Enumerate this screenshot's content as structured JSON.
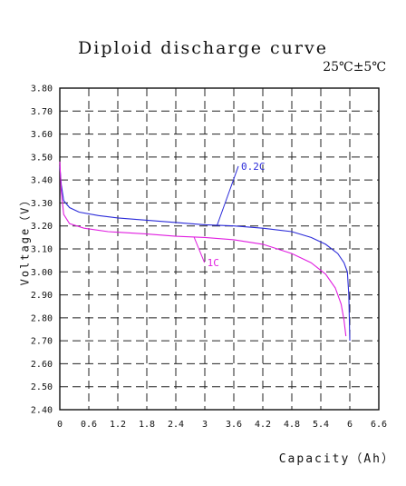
{
  "chart_data": {
    "type": "line",
    "title": "Diploid discharge curve",
    "subtitle": "25℃±5℃",
    "xlabel": "Capacity（Ah）",
    "ylabel": "Voltage（V）",
    "xlim": [
      0,
      6.6
    ],
    "ylim": [
      2.4,
      3.8
    ],
    "x_ticks": [
      "0",
      "0.6",
      "1.2",
      "1.8",
      "2.4",
      "3",
      "3.6",
      "4.2",
      "4.8",
      "5.4",
      "6",
      "6.6"
    ],
    "y_ticks": [
      "3.80",
      "3.70",
      "3.60",
      "3.50",
      "3.40",
      "3.30",
      "3.20",
      "3.10",
      "3.00",
      "2.90",
      "2.80",
      "2.70",
      "2.60",
      "2.50",
      "2.40"
    ],
    "grid": true,
    "series": [
      {
        "name": "0.2C",
        "color": "#2b2bd9",
        "points": [
          [
            0.0,
            3.46
          ],
          [
            0.03,
            3.38
          ],
          [
            0.08,
            3.31
          ],
          [
            0.2,
            3.28
          ],
          [
            0.4,
            3.26
          ],
          [
            0.8,
            3.245
          ],
          [
            1.2,
            3.235
          ],
          [
            1.8,
            3.225
          ],
          [
            2.4,
            3.215
          ],
          [
            3.0,
            3.205
          ],
          [
            3.6,
            3.2
          ],
          [
            4.2,
            3.19
          ],
          [
            4.8,
            3.175
          ],
          [
            5.2,
            3.15
          ],
          [
            5.5,
            3.12
          ],
          [
            5.75,
            3.08
          ],
          [
            5.88,
            3.04
          ],
          [
            5.95,
            3.0
          ],
          [
            5.98,
            2.9
          ],
          [
            6.0,
            2.7
          ]
        ]
      },
      {
        "name": "1C",
        "color": "#e01ee0",
        "points": [
          [
            0.0,
            3.48
          ],
          [
            0.03,
            3.35
          ],
          [
            0.08,
            3.25
          ],
          [
            0.2,
            3.21
          ],
          [
            0.5,
            3.19
          ],
          [
            1.0,
            3.175
          ],
          [
            1.8,
            3.165
          ],
          [
            2.4,
            3.155
          ],
          [
            3.0,
            3.15
          ],
          [
            3.6,
            3.14
          ],
          [
            4.2,
            3.12
          ],
          [
            4.8,
            3.08
          ],
          [
            5.2,
            3.04
          ],
          [
            5.5,
            2.99
          ],
          [
            5.7,
            2.93
          ],
          [
            5.82,
            2.86
          ],
          [
            5.88,
            2.79
          ],
          [
            5.92,
            2.72
          ]
        ]
      }
    ],
    "annotations": [
      {
        "text": "0.2C",
        "x": 3.25,
        "y": 3.2,
        "label_x": 3.75,
        "label_y": 3.46
      },
      {
        "text": "1C",
        "x": 2.78,
        "y": 3.15,
        "label_x": 3.05,
        "label_y": 3.04
      }
    ]
  }
}
